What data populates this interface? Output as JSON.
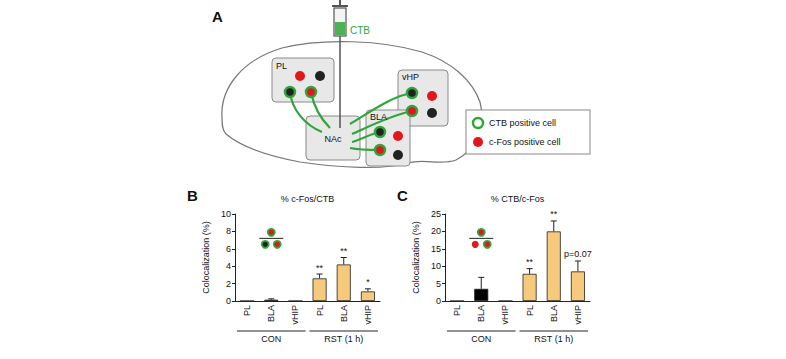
{
  "diagram": {
    "panel_label": "A",
    "injection_label": "CTB",
    "regions": {
      "PL": "PL",
      "NAc": "NAc",
      "vHP": "vHP",
      "BLA": "BLA"
    },
    "key_entries": [
      "CTB positive cell",
      "c-Fos positive cell"
    ]
  },
  "chart_data": [
    {
      "type": "bar",
      "panel_label": "B",
      "title": "% c-Fos/CTB",
      "y_label": "Colocalization (%)",
      "categories": [
        "PL",
        "BLA",
        "vHIP",
        "PL",
        "BLA",
        "vHIP"
      ],
      "series": [
        {
          "name": "CON",
          "color": "#000000",
          "values": [
            0,
            0.15,
            0,
            null,
            null,
            null
          ],
          "errors": [
            0,
            0.1,
            0,
            null,
            null,
            null
          ],
          "annotations": [
            null,
            null,
            null,
            null,
            null,
            null
          ]
        },
        {
          "name": "RST (1 h)",
          "color": "#f7c97a",
          "values": [
            null,
            null,
            null,
            2.6,
            4.2,
            1.1
          ],
          "errors": [
            null,
            null,
            null,
            0.5,
            0.8,
            0.3
          ],
          "annotations": [
            null,
            null,
            null,
            "**",
            "**",
            "*"
          ]
        }
      ],
      "ylim": [
        0,
        10
      ],
      "yticks": [
        0,
        2,
        4,
        6,
        8,
        10
      ],
      "grid": false
    },
    {
      "type": "bar",
      "panel_label": "C",
      "title": "% CTB/c-Fos",
      "y_label": "Colocalization (%)",
      "categories": [
        "PL",
        "BLA",
        "vHIP",
        "PL",
        "BLA",
        "vHIP"
      ],
      "series": [
        {
          "name": "CON",
          "color": "#000000",
          "values": [
            0,
            3.5,
            0,
            null,
            null,
            null
          ],
          "errors": [
            0,
            3.3,
            0,
            null,
            null,
            null
          ],
          "annotations": [
            null,
            null,
            null,
            null,
            null,
            null
          ]
        },
        {
          "name": "RST (1 h)",
          "color": "#f7c97a",
          "values": [
            null,
            null,
            null,
            7.8,
            20,
            8.5
          ],
          "errors": [
            null,
            null,
            null,
            1.5,
            3,
            3
          ],
          "annotations": [
            null,
            null,
            null,
            "**",
            "**",
            "p=0.07"
          ]
        }
      ],
      "ylim": [
        0,
        25
      ],
      "yticks": [
        0,
        5,
        10,
        15,
        20,
        25
      ],
      "grid": false
    }
  ]
}
